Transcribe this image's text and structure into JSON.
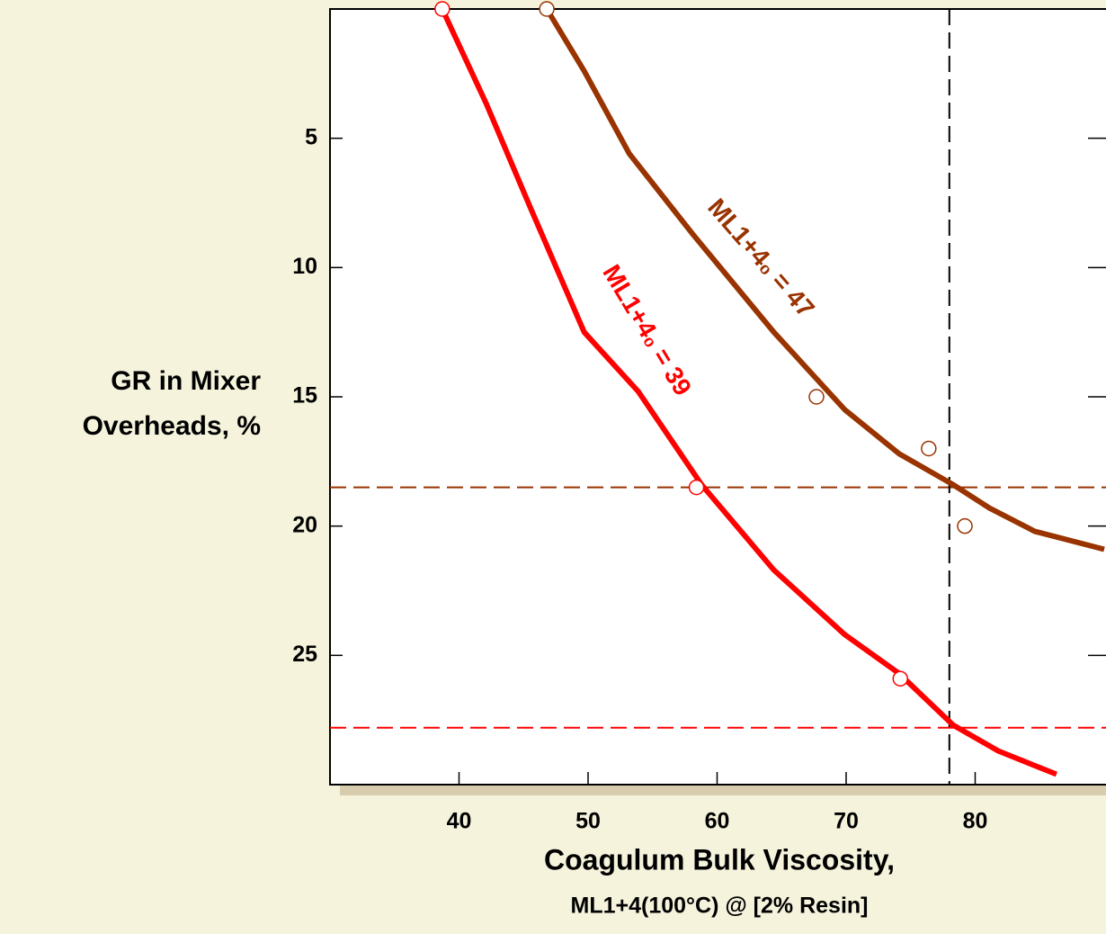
{
  "chart_data": {
    "type": "line",
    "x_label": [
      "Coagulum Bulk Viscosity,",
      "ML1+4(100°C) @ [2% Resin]"
    ],
    "y_label": [
      "GR in Mixer",
      "Overheads, %"
    ],
    "xlim": [
      30,
      90
    ],
    "xticks": [
      40,
      50,
      60,
      70,
      80
    ],
    "ylim": [
      0,
      30
    ],
    "y_inverted": true,
    "yticks": [
      5,
      10,
      15,
      20,
      25
    ],
    "series": [
      {
        "name": "ML1+4₀ = 39",
        "color": "#ff0000",
        "x": [
          38.7,
          42.1,
          45.5,
          49.7,
          53.9,
          58.8,
          64.4,
          69.9,
          74.1,
          78.3,
          81.8,
          86.3
        ],
        "values": [
          0,
          3.65,
          7.65,
          12.5,
          14.8,
          18.4,
          21.7,
          24.2,
          25.7,
          27.7,
          28.7,
          29.6
        ],
        "points_x": [
          38.7,
          58.4,
          74.2
        ],
        "points_y": [
          0,
          18.5,
          25.9
        ]
      },
      {
        "name": "ML1+4₀ = 47",
        "color": "#993300",
        "x": [
          46.8,
          49.7,
          53.2,
          58.1,
          64.4,
          69.9,
          74.1,
          78.3,
          81.1,
          84.6,
          90
        ],
        "values": [
          0,
          2.4,
          5.6,
          8.7,
          12.5,
          15.5,
          17.2,
          18.4,
          19.3,
          20.2,
          20.9
        ],
        "points_x": [
          46.8,
          67.7,
          76.4,
          79.2
        ],
        "points_y": [
          0,
          15.0,
          17.0,
          20.0
        ]
      }
    ],
    "vlines": [
      {
        "value": 78,
        "color": "#000000"
      }
    ],
    "hlines": [
      {
        "value": 18.5,
        "color": "#993300"
      },
      {
        "value": 27.8,
        "color": "#ff0000"
      }
    ]
  }
}
